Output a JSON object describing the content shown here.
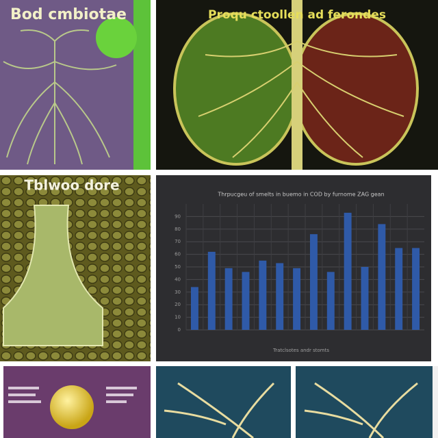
{
  "panels": {
    "top_left_title": "Bod cmbiotae",
    "top_right_title": "Proqu ctoollen ad ferondes",
    "middle_left_title": "Tblwoo dore"
  },
  "chart_data": {
    "type": "bar",
    "title": "Thrpucgeu of smelts in buemo in COD by furnome ZAG gean",
    "x_label": "Tratclsotes andr stomts",
    "categories": [
      null,
      null,
      null,
      null,
      null,
      null,
      null,
      null,
      null,
      null,
      null,
      null,
      null,
      null
    ],
    "values": [
      34,
      62,
      49,
      46,
      55,
      53,
      49,
      76,
      46,
      93,
      50,
      84,
      65,
      65
    ],
    "color": "#2f5aa8",
    "ylim": [
      0,
      100
    ],
    "yticks": [
      0,
      10,
      20,
      30,
      40,
      50,
      60,
      70,
      80,
      90
    ],
    "grid": true
  }
}
